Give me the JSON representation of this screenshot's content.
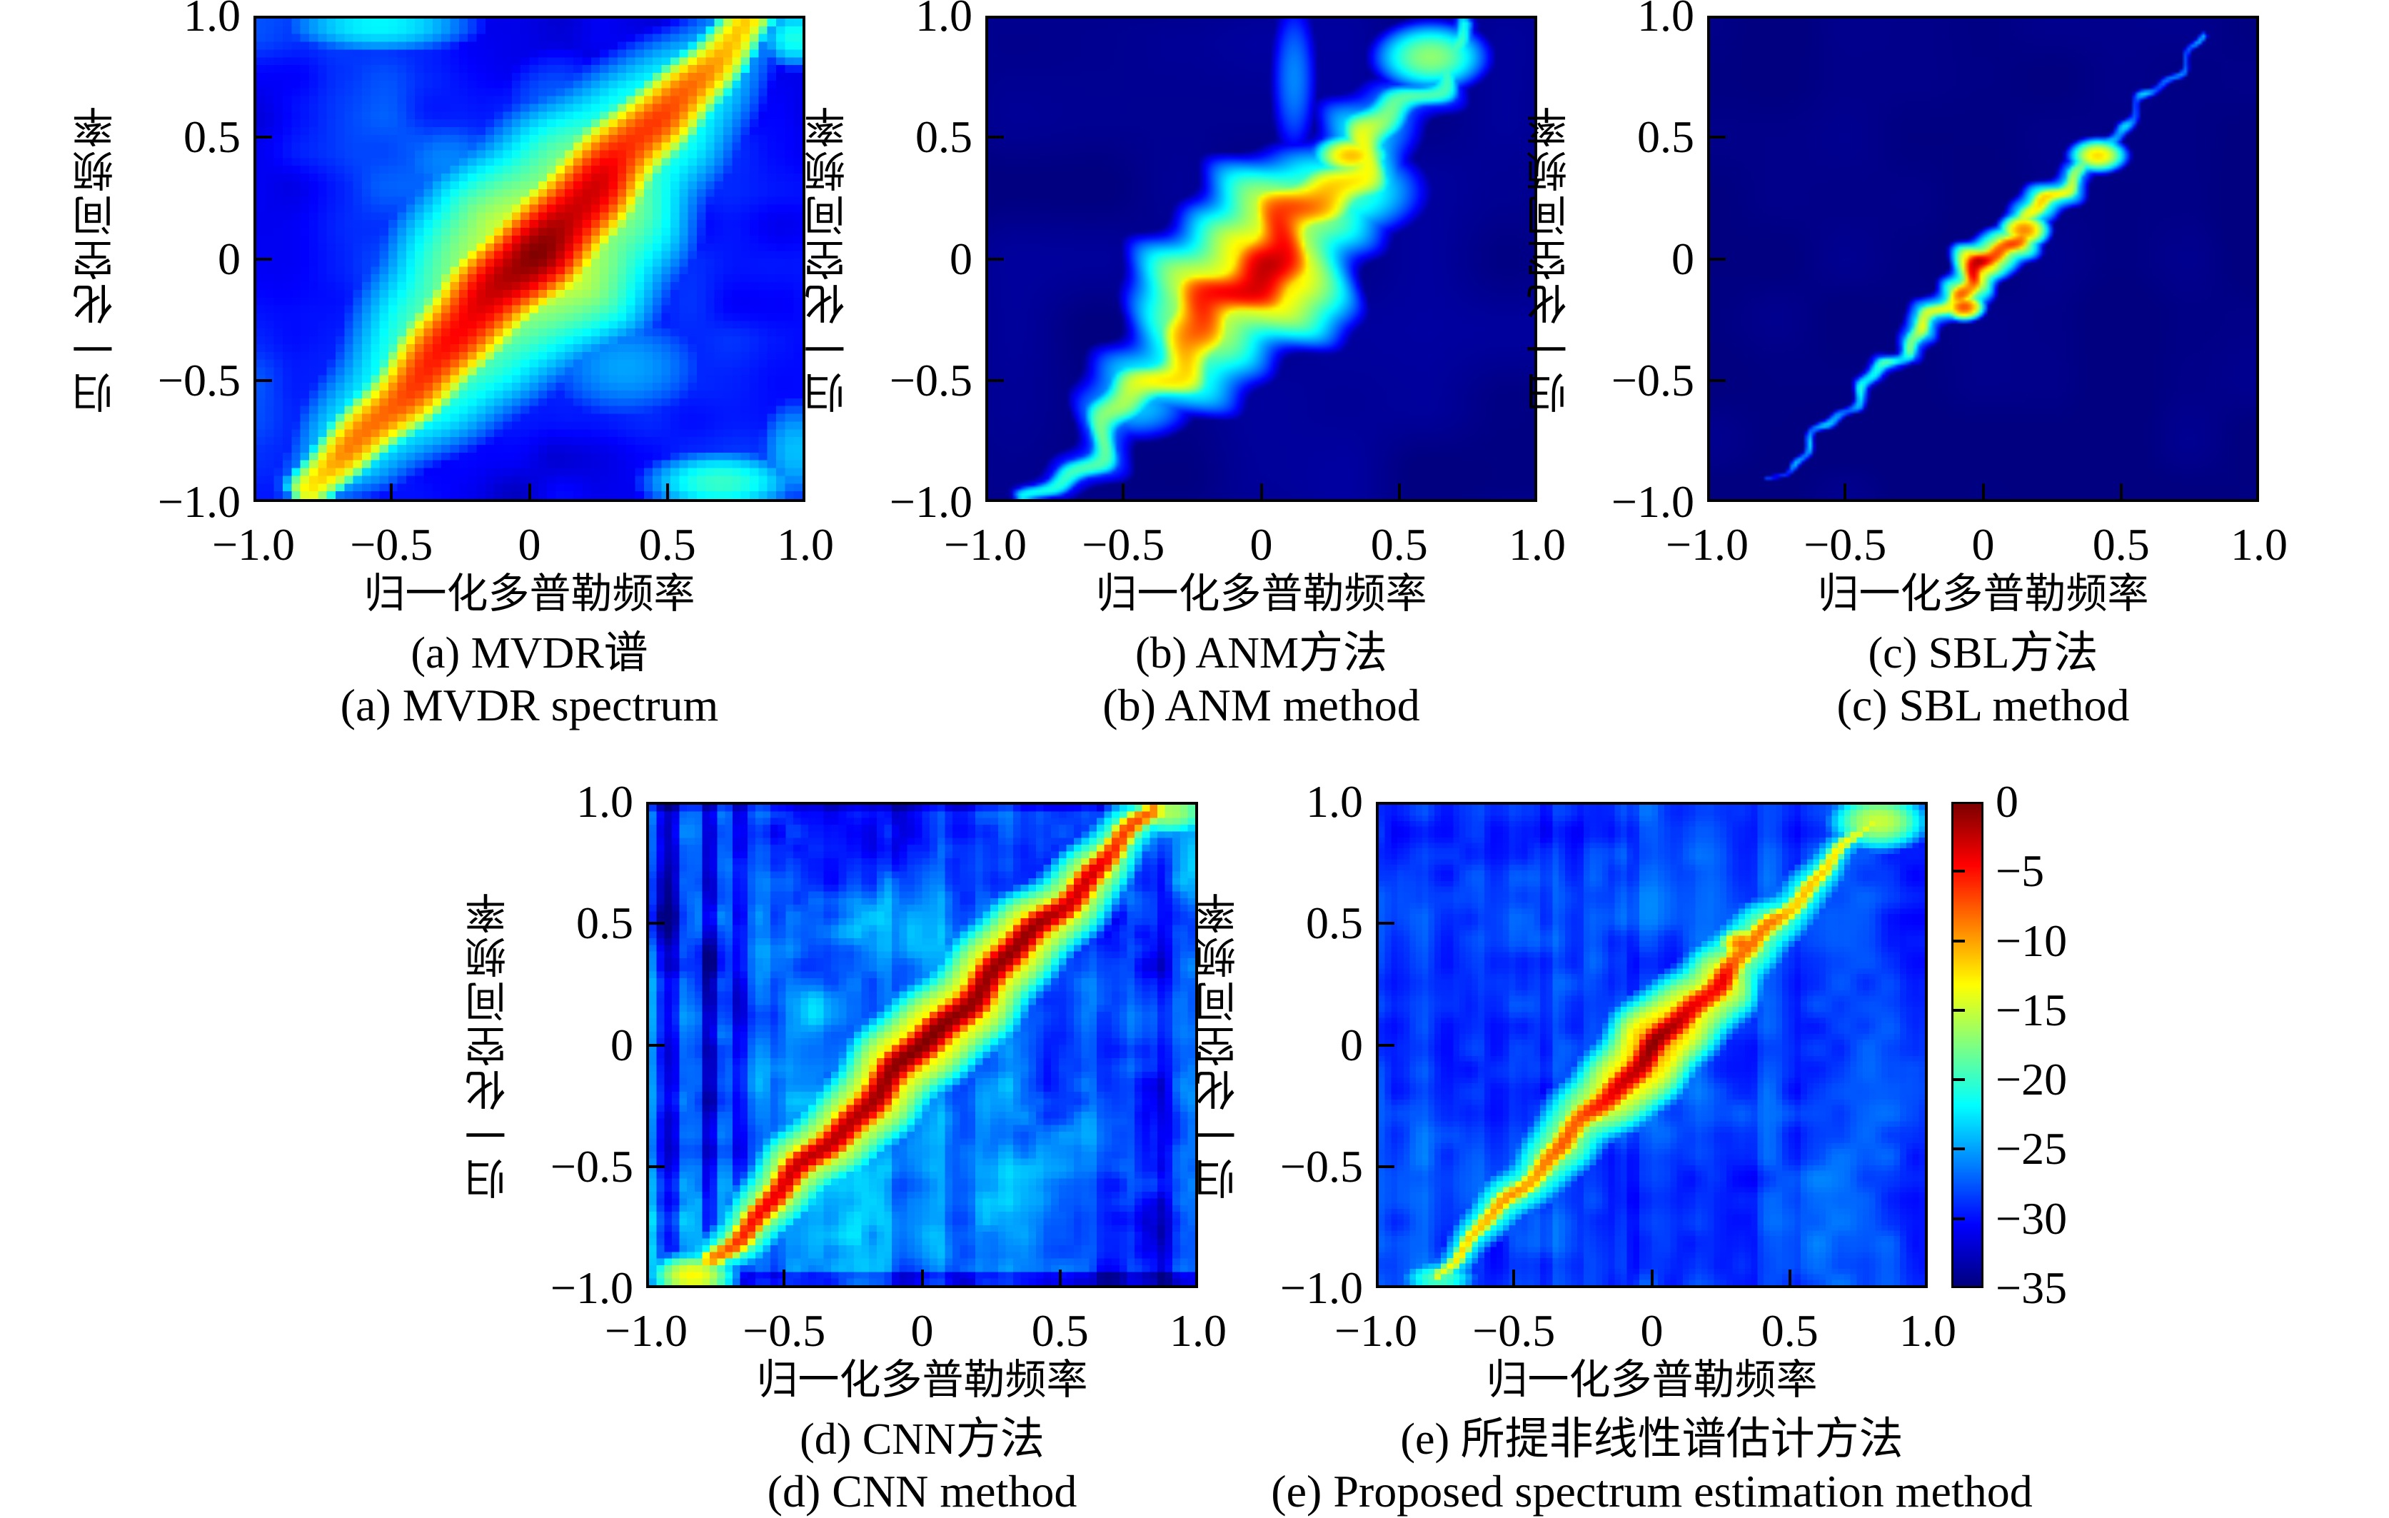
{
  "page": {
    "background": "#ffffff",
    "text_color": "#000000",
    "figure_kind": "2x3 grid of spectrum heatmaps comparing estimation methods, shared jet colorbar"
  },
  "chart_data": {
    "type": "heatmap",
    "colormap": "jet",
    "value_range_db": [
      -35,
      0
    ],
    "x_range": [
      -1,
      1
    ],
    "y_range": [
      -1,
      1
    ],
    "xlabel": "归一化多普勒频率",
    "ylabel": "归一化空间频率",
    "x_ticks": [
      {
        "v": -1.0,
        "label": "−1.0"
      },
      {
        "v": -0.5,
        "label": "−0.5"
      },
      {
        "v": 0.0,
        "label": "0"
      },
      {
        "v": 0.5,
        "label": "0.5"
      },
      {
        "v": 1.0,
        "label": "1.0"
      }
    ],
    "y_ticks": [
      {
        "v": 1.0,
        "label": "1.0"
      },
      {
        "v": 0.5,
        "label": "0.5"
      },
      {
        "v": 0.0,
        "label": "0"
      },
      {
        "v": -0.5,
        "label": "−0.5"
      },
      {
        "v": -1.0,
        "label": "−1.0"
      }
    ],
    "colorbar": {
      "position": "right-of-subplot-e",
      "ticks": [
        {
          "v": 0,
          "label": "0"
        },
        {
          "v": -5,
          "label": "−5"
        },
        {
          "v": -10,
          "label": "−10"
        },
        {
          "v": -15,
          "label": "−15"
        },
        {
          "v": -20,
          "label": "−20"
        },
        {
          "v": -25,
          "label": "−25"
        },
        {
          "v": -30,
          "label": "−30"
        },
        {
          "v": -35,
          "label": "−35"
        }
      ]
    },
    "subplots": [
      {
        "id": "a",
        "caption_zh": "(a) MVDR谱",
        "caption_en": "(a) MVDR spectrum",
        "heat": {
          "res": 62,
          "smooth": false,
          "bg": -30,
          "noise": [
            [
              0.5,
              2.2
            ],
            [
              0.16,
              1.2
            ]
          ],
          "ridge": {
            "p0": [
              -0.8,
              -0.97
            ],
            "p1": [
              0.83,
              1.02
            ],
            "wiggle": [
              0.012,
              3
            ],
            "width_end": 0.085,
            "width_mid": 0.16,
            "halo_mult": 2.8,
            "halo_drop": 13,
            "falloff": 11,
            "profile": [
              [
                0,
                -12
              ],
              [
                0.08,
                -9
              ],
              [
                0.2,
                -7
              ],
              [
                0.35,
                -4
              ],
              [
                0.45,
                -1
              ],
              [
                0.5,
                0
              ],
              [
                0.56,
                -1
              ],
              [
                0.68,
                -4
              ],
              [
                0.8,
                -7
              ],
              [
                0.92,
                -10
              ],
              [
                1,
                -12
              ]
            ],
            "jitter": [
              1.2,
              0.07
            ]
          },
          "blobs": [
            [
              0.7,
              -0.93,
              -20,
              0.22,
              0.1
            ],
            [
              0.97,
              -0.8,
              -24,
              0.12,
              0.2
            ],
            [
              -0.55,
              0.97,
              -22,
              0.3,
              0.1
            ],
            [
              0.97,
              0.92,
              -21,
              0.1,
              0.1
            ],
            [
              -0.3,
              0.4,
              -26,
              0.25,
              0.2
            ],
            [
              0.35,
              -0.45,
              -25,
              0.3,
              0.22
            ],
            [
              0.1,
              0.6,
              -27,
              0.25,
              0.3
            ]
          ]
        }
      },
      {
        "id": "b",
        "caption_zh": "(b) ANM方法",
        "caption_en": "(b) ANM method",
        "heat": {
          "res": 150,
          "smooth": true,
          "bg": -34.5,
          "noise": [
            [
              0.3,
              0.7
            ]
          ],
          "ridge": {
            "p0": [
              -0.82,
              -1.03
            ],
            "p1": [
              0.78,
              0.95
            ],
            "wiggle": [
              0.05,
              5
            ],
            "width_end": 0.04,
            "width_mid": 0.12,
            "halo_mult": 2.3,
            "halo_drop": 8,
            "falloff": 10,
            "profile": [
              [
                0,
                -22
              ],
              [
                0.1,
                -19
              ],
              [
                0.22,
                -16
              ],
              [
                0.32,
                -11
              ],
              [
                0.4,
                -6
              ],
              [
                0.47,
                -3
              ],
              [
                0.52,
                -3
              ],
              [
                0.6,
                -7
              ],
              [
                0.68,
                -11
              ],
              [
                0.75,
                -14
              ],
              [
                0.85,
                -18
              ],
              [
                1,
                -21
              ]
            ],
            "jitter": [
              1.5,
              0.05
            ]
          },
          "blobs": [
            [
              0.33,
              0.43,
              -11,
              0.08,
              0.05
            ],
            [
              0.62,
              0.84,
              -17,
              0.13,
              0.09
            ],
            [
              0.28,
              0.28,
              -19,
              0.2,
              0.13
            ],
            [
              0.12,
              0.75,
              -26,
              0.07,
              0.28
            ],
            [
              -0.45,
              -0.62,
              -24,
              0.15,
              0.1
            ]
          ]
        }
      },
      {
        "id": "c",
        "caption_zh": "(c) SBL方法",
        "caption_en": "(c) SBL method",
        "heat": {
          "res": 150,
          "smooth": true,
          "bg": -34.8,
          "noise": [
            [
              0.25,
              0.4
            ]
          ],
          "ridge": {
            "p0": [
              -0.77,
              -0.93
            ],
            "p1": [
              0.82,
              0.92
            ],
            "wiggle": [
              0.022,
              8
            ],
            "width_end": 0.016,
            "width_mid": 0.04,
            "halo_mult": 2.0,
            "halo_drop": 7,
            "falloff": 10,
            "profile": [
              [
                0,
                -27
              ],
              [
                0.12,
                -25
              ],
              [
                0.22,
                -23
              ],
              [
                0.32,
                -19
              ],
              [
                0.4,
                -13
              ],
              [
                0.46,
                -7
              ],
              [
                0.5,
                -4
              ],
              [
                0.54,
                -7
              ],
              [
                0.58,
                -12
              ],
              [
                0.63,
                -11
              ],
              [
                0.68,
                -16
              ],
              [
                0.75,
                -22
              ],
              [
                0.85,
                -26
              ],
              [
                1,
                -26
              ]
            ],
            "jitter": [
              3.5,
              0.02
            ]
          },
          "blobs": [
            [
              0.42,
              0.43,
              -12,
              0.06,
              0.04
            ],
            [
              -0.07,
              -0.2,
              -7,
              0.04,
              0.03
            ],
            [
              0.15,
              0.12,
              -9,
              0.05,
              0.04
            ]
          ]
        }
      },
      {
        "id": "d",
        "caption_zh": "(d) CNN方法",
        "caption_en": "(d) CNN method",
        "heat": {
          "res": 72,
          "smooth": false,
          "bg": -27,
          "noise": [
            [
              0.45,
              2.5
            ],
            [
              0.18,
              2.0
            ],
            [
              0.07,
              1.2
            ]
          ],
          "stripes": {
            "scale": 0.05,
            "amp": 2.0
          },
          "vbands": [
            [
              -0.93,
              0.05,
              -6
            ],
            [
              -0.78,
              0.035,
              -5
            ],
            [
              -0.67,
              0.03,
              -4
            ],
            [
              0.88,
              0.04,
              -3
            ]
          ],
          "hbands": [
            [
              -0.97,
              0.04,
              -4
            ],
            [
              0.99,
              0.03,
              -2
            ]
          ],
          "ridge": {
            "p0": [
              -0.77,
              -0.9
            ],
            "p1": [
              0.85,
              0.98
            ],
            "wiggle": [
              0.015,
              4
            ],
            "width_end": 0.045,
            "width_mid": 0.075,
            "halo_mult": 2.6,
            "halo_drop": 11,
            "falloff": 13,
            "profile": [
              [
                0,
                -9
              ],
              [
                0.05,
                -6
              ],
              [
                0.12,
                -4
              ],
              [
                0.25,
                -2
              ],
              [
                0.4,
                -1
              ],
              [
                0.5,
                0
              ],
              [
                0.62,
                -0.5
              ],
              [
                0.75,
                -1.5
              ],
              [
                0.88,
                -4
              ],
              [
                0.96,
                -7
              ],
              [
                1,
                -9
              ]
            ],
            "jitter": [
              1.0,
              0.06
            ]
          },
          "blobs": [
            [
              -0.84,
              -0.96,
              -13,
              0.1,
              0.06
            ],
            [
              0.9,
              0.97,
              -16,
              0.12,
              0.07
            ]
          ]
        }
      },
      {
        "id": "e",
        "caption_zh": "(e) 所提非线性谱估计方法",
        "caption_en": "(e) Proposed spectrum estimation method",
        "heat": {
          "res": 88,
          "smooth": false,
          "bg": -28.5,
          "noise": [
            [
              0.3,
              1.2
            ],
            [
              0.09,
              1.1
            ]
          ],
          "stripes": {
            "scale": 0.04,
            "amp": 1.2
          },
          "vbands": [],
          "hbands": [],
          "ridge": {
            "p0": [
              -0.79,
              -0.96
            ],
            "p1": [
              0.81,
              0.94
            ],
            "wiggle": [
              0.012,
              5
            ],
            "width_end": 0.028,
            "width_mid": 0.06,
            "halo_mult": 2.8,
            "halo_drop": 9,
            "falloff": 12,
            "profile": [
              [
                0,
                -13
              ],
              [
                0.1,
                -11
              ],
              [
                0.2,
                -9
              ],
              [
                0.3,
                -8
              ],
              [
                0.38,
                -5
              ],
              [
                0.44,
                -2
              ],
              [
                0.5,
                0
              ],
              [
                0.56,
                -2
              ],
              [
                0.62,
                -5
              ],
              [
                0.68,
                -6
              ],
              [
                0.76,
                -9
              ],
              [
                0.88,
                -12
              ],
              [
                1,
                -14
              ]
            ],
            "jitter": [
              2.0,
              0.04
            ]
          },
          "blobs": [
            [
              0.83,
              0.93,
              -15,
              0.12,
              0.08
            ],
            [
              -0.78,
              -0.97,
              -19,
              0.1,
              0.05
            ],
            [
              0.33,
              0.42,
              -8,
              0.05,
              0.04
            ]
          ]
        }
      }
    ]
  }
}
